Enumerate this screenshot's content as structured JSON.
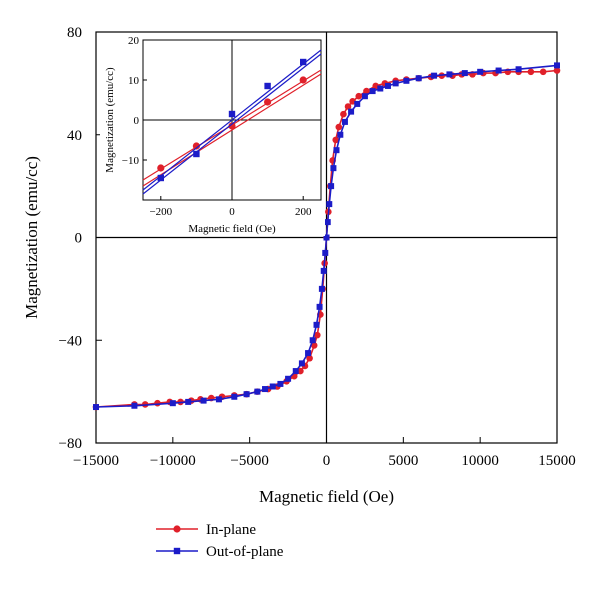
{
  "chart_data": [
    {
      "id": "main",
      "type": "line",
      "xlabel": "Magnetic field (Oe)",
      "ylabel": "Magnetization (emu/cc)",
      "xlim": [
        -15000,
        15000
      ],
      "ylim": [
        -80,
        80
      ],
      "xticks": [
        -15000,
        -10000,
        -5000,
        0,
        5000,
        10000,
        15000
      ],
      "xtick_labels": [
        "−15000",
        "−10000",
        "−5000",
        "0",
        "5000",
        "10000",
        "15000"
      ],
      "yticks": [
        -80,
        -40,
        0,
        40,
        80
      ],
      "ytick_labels": [
        "−80",
        "−40",
        "0",
        "40",
        "80"
      ],
      "grid": false,
      "series": [
        {
          "name": "In-plane",
          "color": "#e0202a",
          "marker": "circle",
          "x": [
            -15000,
            -12500,
            -11800,
            -11000,
            -10200,
            -9500,
            -8800,
            -8200,
            -7500,
            -6800,
            -6000,
            -5200,
            -4500,
            -3800,
            -3200,
            -2600,
            -2100,
            -1700,
            -1400,
            -1100,
            -800,
            -600,
            -400,
            -250,
            -120,
            0,
            120,
            250,
            400,
            600,
            800,
            1100,
            1400,
            1700,
            2100,
            2600,
            3200,
            3800,
            4500,
            5200,
            6000,
            6800,
            7500,
            8200,
            8800,
            9500,
            10200,
            11000,
            11800,
            12500,
            13300,
            14100,
            15000
          ],
          "y": [
            -66,
            -65,
            -65,
            -64.5,
            -64,
            -64,
            -63.5,
            -63,
            -62.5,
            -62,
            -61.5,
            -61,
            -60,
            -59,
            -58,
            -56,
            -54,
            -52,
            -50,
            -47,
            -42,
            -38,
            -30,
            -20,
            -10,
            0,
            10,
            20,
            30,
            38,
            43,
            48,
            51,
            53,
            55,
            57,
            59,
            60,
            61,
            61.5,
            62,
            62.5,
            63,
            63,
            63.5,
            63.5,
            64,
            64,
            64.5,
            64.5,
            64.5,
            64.5,
            65
          ]
        },
        {
          "name": "Out-of-plane",
          "color": "#1c1cc8",
          "marker": "square",
          "x": [
            -15000,
            -12500,
            -10000,
            -9000,
            -8000,
            -7000,
            -6000,
            -5200,
            -4500,
            -4000,
            -3500,
            -3000,
            -2500,
            -2000,
            -1600,
            -1200,
            -900,
            -650,
            -450,
            -300,
            -180,
            -80,
            0,
            80,
            180,
            300,
            450,
            650,
            900,
            1200,
            1600,
            2000,
            2500,
            3000,
            3500,
            4000,
            4500,
            5200,
            6000,
            7000,
            8000,
            9000,
            10000,
            11200,
            12500,
            15000
          ],
          "y": [
            -66,
            -65.5,
            -64.5,
            -64,
            -63.5,
            -63,
            -62,
            -61,
            -60,
            -59,
            -58,
            -57,
            -55,
            -52,
            -49,
            -45,
            -40,
            -34,
            -27,
            -20,
            -13,
            -6,
            0,
            6,
            13,
            20,
            27,
            34,
            40,
            45,
            49,
            52,
            55,
            57,
            58,
            59,
            60,
            61,
            62,
            63,
            63.5,
            64,
            64.5,
            65,
            65.5,
            67
          ]
        }
      ]
    },
    {
      "id": "inset",
      "type": "line",
      "xlabel": "Magnetic field (Oe)",
      "ylabel": "Magnetization (emu/cc)",
      "xlim": [
        -250,
        250
      ],
      "ylim": [
        -20,
        20
      ],
      "xticks": [
        -200,
        0,
        200
      ],
      "xtick_labels": [
        "−200",
        "0",
        "200"
      ],
      "yticks": [
        -10,
        0,
        10,
        20
      ],
      "ytick_labels": [
        "−10",
        "0",
        "10",
        "20"
      ],
      "grid": false,
      "series": [
        {
          "name": "In-plane",
          "color": "#e0202a",
          "marker": "circle",
          "curve_x": [
            -250,
            250
          ],
          "curve_y_up": [
            -15,
            12.5
          ],
          "curve_y_down": [
            -16.5,
            11.5
          ],
          "marker_x": [
            -200,
            -100,
            0,
            100,
            200
          ],
          "marker_y": [
            -12,
            -6.5,
            -1.5,
            4.5,
            10
          ]
        },
        {
          "name": "Out-of-plane",
          "color": "#1c1cc8",
          "marker": "square",
          "curve_x": [
            -250,
            250
          ],
          "curve_y_up": [
            -17.5,
            17.5
          ],
          "curve_y_down": [
            -18.5,
            16.5
          ],
          "marker_x": [
            -200,
            -100,
            0,
            100,
            200
          ],
          "marker_y": [
            -14.5,
            -8.5,
            1.5,
            8.5,
            14.5
          ]
        }
      ]
    }
  ],
  "legend": {
    "placement": "bottom-left",
    "items": [
      {
        "label": "In-plane",
        "color": "#e0202a",
        "marker": "circle"
      },
      {
        "label": "Out-of-plane",
        "color": "#1c1cc8",
        "marker": "square"
      }
    ]
  }
}
